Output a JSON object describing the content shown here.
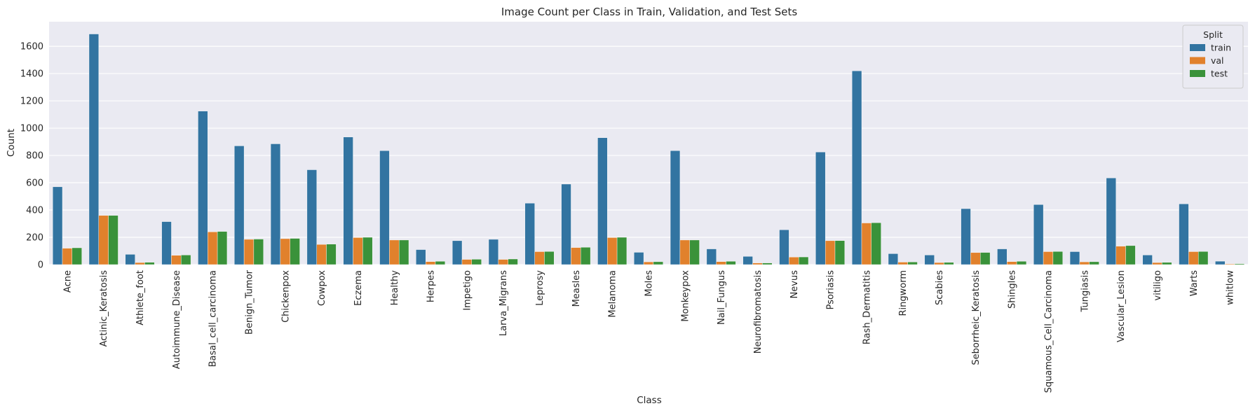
{
  "chart_data": {
    "type": "bar",
    "title": "Image Count per Class in Train, Validation, and Test Sets",
    "xlabel": "Class",
    "ylabel": "Count",
    "ylim": [
      0,
      1780
    ],
    "yticks": [
      0,
      200,
      400,
      600,
      800,
      1000,
      1200,
      1400,
      1600
    ],
    "grid": true,
    "legend": {
      "title": "Split",
      "position": "top-right"
    },
    "categories": [
      "Acne",
      "Actinic_Keratosis",
      "Athlete_foot",
      "Autoimmune_Disease",
      "Basal_cell_carcinoma",
      "Benign_Tumor",
      "Chickenpox",
      "Cowpox",
      "Eczema",
      "Healthy",
      "Herpes",
      "Impetigo",
      "Larva_Migrans",
      "Leprosy",
      "Measles",
      "Melanoma",
      "Moles",
      "Monkeypox",
      "Nail_Fungus",
      "Neurofibromatosis",
      "Nevus",
      "Psoriasis",
      "Rash_Dermatitis",
      "Ringworm",
      "Scabies",
      "Seborrheic_Keratosis",
      "Shingles",
      "Squamous_Cell_Carcinoma",
      "Tungiasis",
      "Vascular_Lesion",
      "vitiligo",
      "Warts",
      "whitlow"
    ],
    "series": [
      {
        "name": "train",
        "color": "#3274a1",
        "values": [
          570,
          1690,
          75,
          315,
          1125,
          870,
          885,
          695,
          935,
          835,
          110,
          175,
          185,
          450,
          590,
          930,
          90,
          835,
          115,
          60,
          255,
          825,
          1420,
          80,
          70,
          410,
          115,
          440,
          95,
          635,
          70,
          445,
          25
        ]
      },
      {
        "name": "val",
        "color": "#e1812c",
        "values": [
          120,
          360,
          15,
          68,
          240,
          185,
          190,
          148,
          198,
          180,
          22,
          38,
          38,
          95,
          125,
          198,
          20,
          180,
          22,
          12,
          55,
          175,
          305,
          18,
          15,
          88,
          22,
          95,
          20,
          135,
          15,
          95,
          5
        ]
      },
      {
        "name": "test",
        "color": "#3a923a",
        "values": [
          123,
          360,
          17,
          70,
          243,
          187,
          192,
          150,
          200,
          180,
          24,
          39,
          41,
          96,
          127,
          200,
          21,
          180,
          24,
          12,
          56,
          176,
          307,
          19,
          16,
          89,
          24,
          96,
          21,
          139,
          16,
          96,
          6
        ]
      }
    ]
  }
}
